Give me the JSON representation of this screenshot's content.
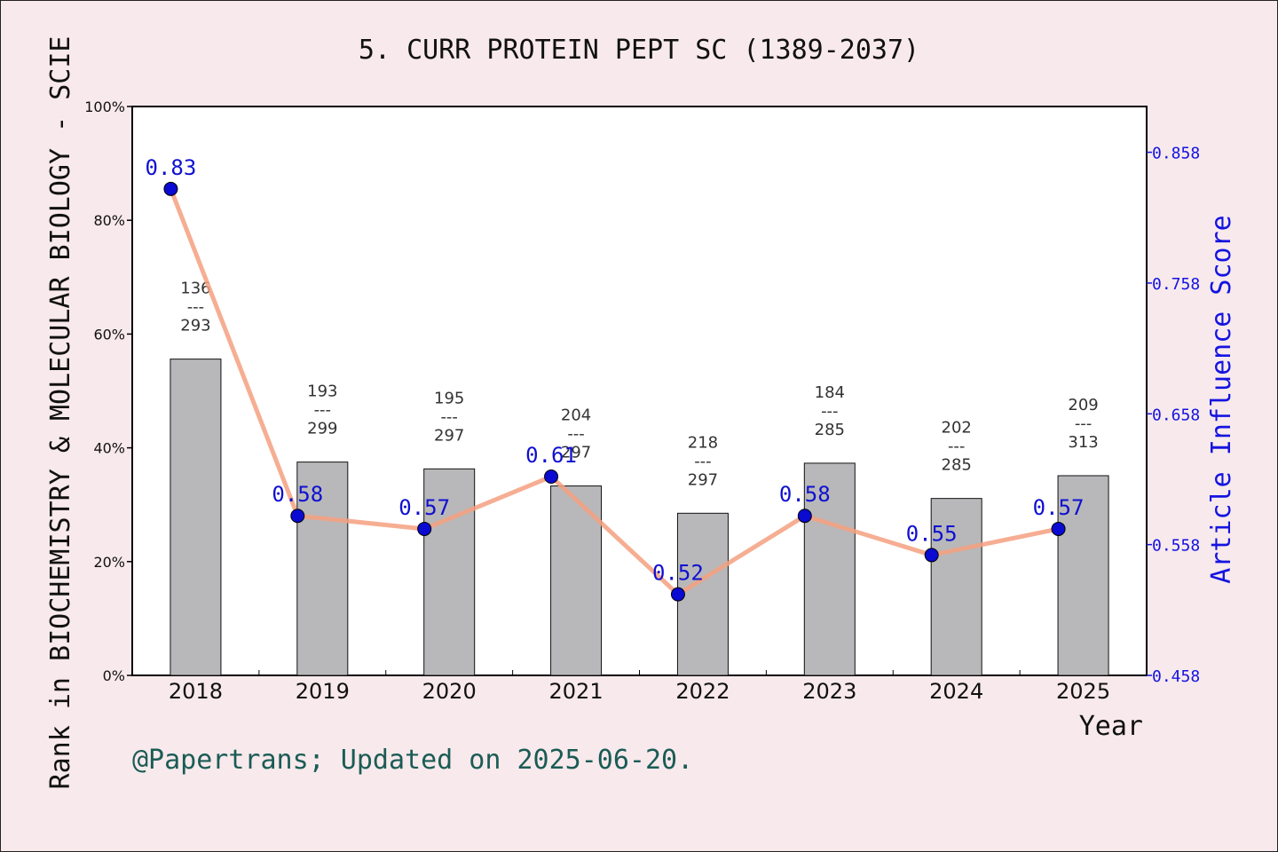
{
  "chart_data": {
    "type": "bar+line",
    "title": "5. CURR PROTEIN PEPT SC (1389-2037)",
    "xlabel": "Year",
    "ylabel_left": "Rank in BIOCHEMISTRY & MOLECULAR BIOLOGY - SCIE",
    "ylabel_right": "Article Influence Score",
    "categories": [
      "2018",
      "2019",
      "2020",
      "2021",
      "2022",
      "2023",
      "2024",
      "2025"
    ],
    "bars": {
      "ranks": [
        136,
        193,
        195,
        204,
        218,
        184,
        202,
        209
      ],
      "totals": [
        293,
        299,
        297,
        297,
        297,
        285,
        285,
        313
      ],
      "percent": [
        55.6,
        37.5,
        36.3,
        33.3,
        28.5,
        37.3,
        31.1,
        35.1
      ],
      "color": "#b8b8ba"
    },
    "line": {
      "values": [
        0.83,
        0.58,
        0.57,
        0.61,
        0.52,
        0.58,
        0.55,
        0.57
      ],
      "labels": [
        "0.83",
        "0.58",
        "0.57",
        "0.61",
        "0.52",
        "0.58",
        "0.55",
        "0.57"
      ],
      "line_color": "#f5a080",
      "marker_color": "#0a0ad2"
    },
    "y_left": {
      "lim": [
        0,
        100
      ],
      "ticks": [
        "0%",
        "20%",
        "40%",
        "60%",
        "80%",
        "100%"
      ]
    },
    "y_right": {
      "lim": [
        0.458,
        0.893
      ],
      "ticks": [
        "0.458",
        "0.558",
        "0.658",
        "0.758",
        "0.858"
      ]
    },
    "rank_separator": "---",
    "grid": false
  },
  "footer": "@Papertrans; Updated on 2025-06-20."
}
